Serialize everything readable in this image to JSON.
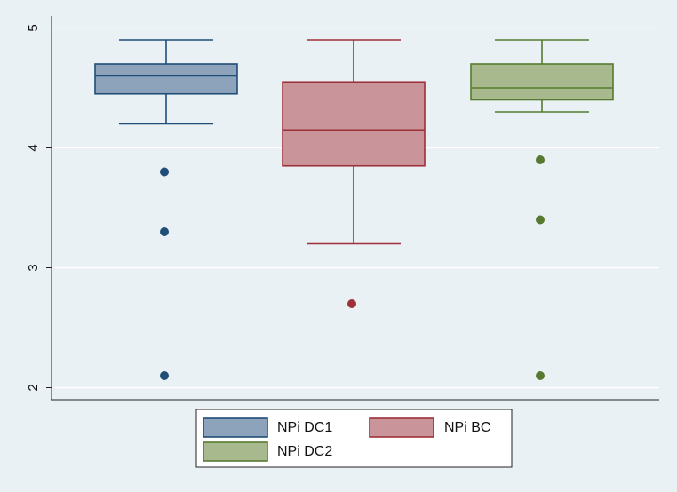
{
  "chart_data": {
    "type": "box",
    "title": "",
    "xlabel": "",
    "ylabel": "",
    "ylim": [
      1.9,
      5.1
    ],
    "yticks": [
      2,
      3,
      4,
      5
    ],
    "grid": true,
    "legend_position": "bottom",
    "series": [
      {
        "name": "NPi DC1",
        "color": "#8da3bc",
        "edge": "#1f4e79",
        "whisker_low": 4.2,
        "q1": 4.45,
        "median": 4.6,
        "q3": 4.7,
        "whisker_high": 4.9,
        "outliers": [
          3.8,
          3.3,
          2.1
        ]
      },
      {
        "name": "NPi BC",
        "color": "#c9959b",
        "edge": "#9e3039",
        "whisker_low": 3.2,
        "q1": 3.85,
        "median": 4.15,
        "q3": 4.55,
        "whisker_high": 4.9,
        "outliers": [
          2.7
        ]
      },
      {
        "name": "NPi DC2",
        "color": "#a9b98e",
        "edge": "#567a2f",
        "whisker_low": 4.3,
        "q1": 4.4,
        "median": 4.5,
        "q3": 4.7,
        "whisker_high": 4.9,
        "outliers": [
          3.9,
          3.4,
          2.1
        ]
      }
    ]
  }
}
